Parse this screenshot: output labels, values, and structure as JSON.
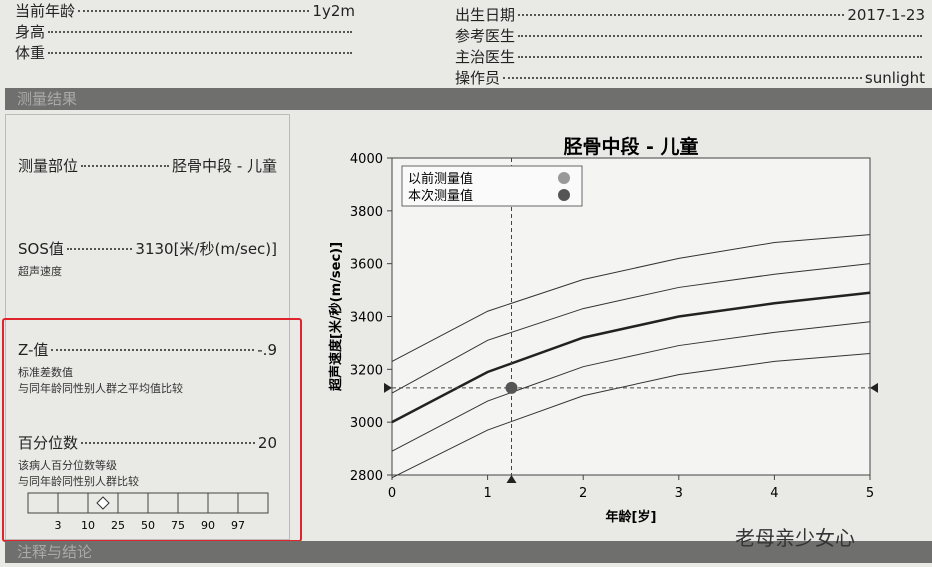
{
  "header": {
    "left": [
      {
        "label": "当前年龄",
        "value": "1y2m"
      },
      {
        "label": "身高"
      },
      {
        "label": "体重"
      }
    ],
    "right": [
      {
        "label": "出生日期",
        "value": "2017-1-23"
      },
      {
        "label": "参考医生"
      },
      {
        "label": "主治医生"
      },
      {
        "label": "操作员",
        "value": "sunlight"
      }
    ]
  },
  "section_title": "测量结果",
  "results": {
    "site_label": "测量部位",
    "site_value": "胫骨中段 - 儿童",
    "sos_label": "SOS值",
    "sos_value": "3130[米/秒(m/sec)]",
    "sos_note": "超声速度",
    "z_label": "Z-值",
    "z_value": "-.9",
    "z_note1": "标准差数值",
    "z_note2": "与同年龄同性别人群之平均值比较",
    "pct_label": "百分位数",
    "pct_value": "20",
    "pct_note1": "该病人百分位数等级",
    "pct_note2": "与同年龄同性别人群比较",
    "pct_scale": [
      "3",
      "10",
      "25",
      "50",
      "75",
      "90",
      "97"
    ]
  },
  "chart_data": {
    "type": "line",
    "title": "胫骨中段 - 儿童",
    "x_label": "年龄[岁]",
    "y_label": "超声速度[米/秒(m/sec)]",
    "x": [
      0,
      1,
      2,
      3,
      4,
      5
    ],
    "series": [
      {
        "color": "#333",
        "line_width": 1,
        "values": [
          3230,
          3420,
          3540,
          3620,
          3680,
          3710
        ]
      },
      {
        "color": "#333",
        "line_width": 1,
        "values": [
          3110,
          3310,
          3430,
          3510,
          3560,
          3600
        ]
      },
      {
        "color": "#222",
        "line_width": 2.5,
        "values": [
          3000,
          3190,
          3320,
          3400,
          3450,
          3490
        ]
      },
      {
        "color": "#333",
        "line_width": 1,
        "values": [
          2890,
          3080,
          3210,
          3290,
          3340,
          3380
        ]
      },
      {
        "color": "#333",
        "line_width": 1,
        "values": [
          2790,
          2970,
          3100,
          3180,
          3230,
          3260
        ]
      }
    ],
    "legend": [
      {
        "name": "以前测量值",
        "color": "#999"
      },
      {
        "name": "本次测量值",
        "color": "#555"
      }
    ],
    "marker": {
      "x": 1.25,
      "y": 3130,
      "color": "#555"
    },
    "xlim": [
      0,
      5
    ],
    "xticks": [
      0,
      1,
      2,
      3,
      4,
      5
    ],
    "ylim": [
      2800,
      4000
    ],
    "yticks": [
      2800,
      3000,
      3200,
      3400,
      3600,
      3800,
      4000
    ]
  },
  "footer_title": "注释与结论",
  "watermark": "老母亲少女心"
}
